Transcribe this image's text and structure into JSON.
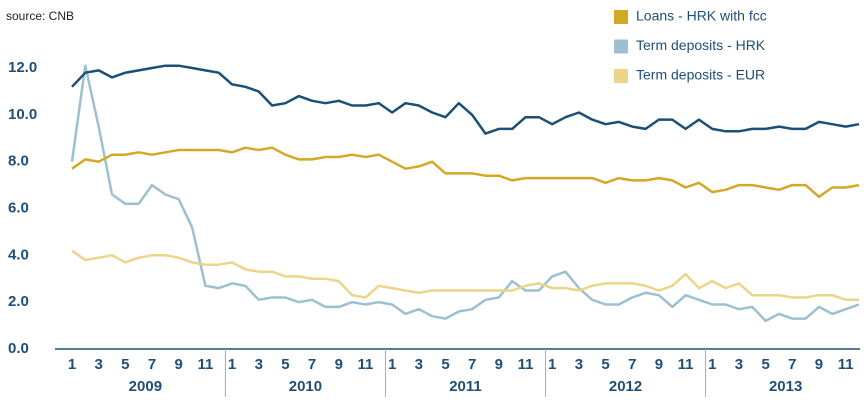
{
  "chart_data": {
    "type": "line",
    "source": "source: CNB",
    "categories": [
      "1",
      null,
      "3",
      null,
      "5",
      null,
      "7",
      null,
      "9",
      null,
      "11",
      null,
      "1",
      null,
      "3",
      null,
      "5",
      null,
      "7",
      null,
      "9",
      null,
      "11",
      null,
      "1",
      null,
      "3",
      null,
      "5",
      null,
      "7",
      null,
      "9",
      null,
      "11",
      null,
      "1",
      null,
      "3",
      null,
      "5",
      null,
      "7",
      null,
      "9",
      null,
      "11",
      null,
      "1",
      null,
      "3",
      null,
      "5",
      null,
      "7",
      null,
      "9",
      null,
      "11",
      null
    ],
    "years": [
      "2009",
      "2010",
      "2011",
      "2012",
      "2013"
    ],
    "series": [
      {
        "color": "#1b4f76",
        "values": [
          11.2,
          11.8,
          11.9,
          11.6,
          11.8,
          11.9,
          12.0,
          12.1,
          12.1,
          12.0,
          11.9,
          11.8,
          11.3,
          11.2,
          11.0,
          10.4,
          10.5,
          10.8,
          10.6,
          10.5,
          10.6,
          10.4,
          10.4,
          10.5,
          10.1,
          10.5,
          10.4,
          10.1,
          9.9,
          10.5,
          10.0,
          9.2,
          9.4,
          9.4,
          9.9,
          9.9,
          9.6,
          9.9,
          10.1,
          9.8,
          9.6,
          9.7,
          9.5,
          9.4,
          9.8,
          9.8,
          9.4,
          9.8,
          9.4,
          9.3,
          9.3,
          9.4,
          9.4,
          9.5,
          9.4,
          9.4,
          9.7,
          9.6,
          9.5,
          9.6
        ]
      },
      {
        "name": "Loans - HRK with fcc",
        "color": "#d4a827",
        "values": [
          7.7,
          8.1,
          8.0,
          8.3,
          8.3,
          8.4,
          8.3,
          8.4,
          8.5,
          8.5,
          8.5,
          8.5,
          8.4,
          8.6,
          8.5,
          8.6,
          8.3,
          8.1,
          8.1,
          8.2,
          8.2,
          8.3,
          8.2,
          8.3,
          8.0,
          7.7,
          7.8,
          8.0,
          7.5,
          7.5,
          7.5,
          7.4,
          7.4,
          7.2,
          7.3,
          7.3,
          7.3,
          7.3,
          7.3,
          7.3,
          7.1,
          7.3,
          7.2,
          7.2,
          7.3,
          7.2,
          6.9,
          7.1,
          6.7,
          6.8,
          7.0,
          7.0,
          6.9,
          6.8,
          7.0,
          7.0,
          6.5,
          6.9,
          6.9,
          7.0
        ]
      },
      {
        "name": "Term deposits - HRK",
        "color": "#9dc0d0",
        "values": [
          8.0,
          12.1,
          9.5,
          6.6,
          6.2,
          6.2,
          7.0,
          6.6,
          6.4,
          5.2,
          2.7,
          2.6,
          2.8,
          2.7,
          2.1,
          2.2,
          2.2,
          2.0,
          2.1,
          1.8,
          1.8,
          2.0,
          1.9,
          2.0,
          1.9,
          1.5,
          1.7,
          1.4,
          1.3,
          1.6,
          1.7,
          2.1,
          2.2,
          2.9,
          2.5,
          2.5,
          3.1,
          3.3,
          2.6,
          2.1,
          1.9,
          1.9,
          2.2,
          2.4,
          2.3,
          1.8,
          2.3,
          2.1,
          1.9,
          1.9,
          1.7,
          1.8,
          1.2,
          1.5,
          1.3,
          1.3,
          1.8,
          1.5,
          1.7,
          1.9
        ]
      },
      {
        "name": "Term deposits - EUR",
        "color": "#ecd48a",
        "values": [
          4.2,
          3.8,
          3.9,
          4.0,
          3.7,
          3.9,
          4.0,
          4.0,
          3.9,
          3.7,
          3.6,
          3.6,
          3.7,
          3.4,
          3.3,
          3.3,
          3.1,
          3.1,
          3.0,
          3.0,
          2.9,
          2.3,
          2.2,
          2.7,
          2.6,
          2.5,
          2.4,
          2.5,
          2.5,
          2.5,
          2.5,
          2.5,
          2.5,
          2.5,
          2.7,
          2.8,
          2.6,
          2.6,
          2.5,
          2.7,
          2.8,
          2.8,
          2.8,
          2.7,
          2.5,
          2.7,
          3.2,
          2.6,
          2.9,
          2.6,
          2.8,
          2.3,
          2.3,
          2.3,
          2.2,
          2.2,
          2.3,
          2.3,
          2.1,
          2.1
        ]
      }
    ],
    "ylim": [
      0,
      12.6
    ],
    "yticks": [
      {
        "value": 0,
        "label": "0.0"
      },
      {
        "value": 2,
        "label": "2.0"
      },
      {
        "value": 4,
        "label": "4.0"
      },
      {
        "value": 6,
        "label": "6.0"
      },
      {
        "value": 8,
        "label": "8.0"
      },
      {
        "value": 10,
        "label": "10.0"
      },
      {
        "value": 12,
        "label": "12.0"
      }
    ],
    "legend": "top-right"
  }
}
